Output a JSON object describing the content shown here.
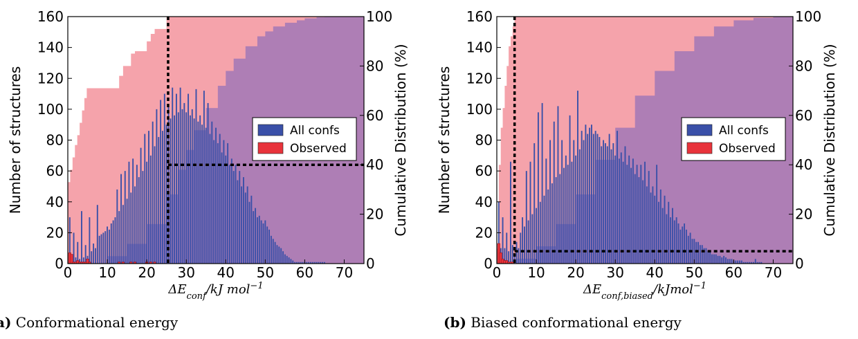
{
  "chart_data": [
    {
      "id": "a",
      "type": "bar",
      "caption_tag": "a)",
      "caption_text": "Conformational energy",
      "xlabel_main": "ΔE",
      "xlabel_sub": "conf",
      "xlabel_rest": "/kJ mol",
      "xlabel_sup": "−1",
      "ylabel_left": "Number of structures",
      "ylabel_right": "Cumulative Distribution (%)",
      "xlim": [
        0,
        75
      ],
      "ylim_left": [
        0,
        160
      ],
      "ylim_right": [
        0,
        100
      ],
      "xticks": [
        "0",
        "10",
        "20",
        "30",
        "40",
        "50",
        "60",
        "70"
      ],
      "yticks_left": [
        "0",
        "20",
        "40",
        "60",
        "80",
        "100",
        "120",
        "140",
        "160"
      ],
      "yticks_right": [
        "0",
        "20",
        "40",
        "60",
        "80",
        "100"
      ],
      "legend": [
        {
          "label": "All confs",
          "color": "#3a50a8"
        },
        {
          "label": "Observed",
          "color": "#e8333b"
        }
      ],
      "legend_position": "center-right",
      "colors": {
        "all": "#3a50a8",
        "observed": "#e8333b",
        "cum_all": "#ae7eb5",
        "cum_obs": "#f5a3ab"
      },
      "all_confs": {
        "x": [
          0.5,
          1,
          1.5,
          2,
          2.5,
          3,
          3.5,
          4,
          4.5,
          5,
          5.5,
          6,
          6.5,
          7,
          7.5,
          8,
          8.5,
          9,
          9.5,
          10,
          10.5,
          11,
          11.5,
          12,
          12.5,
          13,
          13.5,
          14,
          14.5,
          15,
          15.5,
          16,
          16.5,
          17,
          17.5,
          18,
          18.5,
          19,
          19.5,
          20,
          20.5,
          21,
          21.5,
          22,
          22.5,
          23,
          23.5,
          24,
          24.5,
          25,
          25.5,
          26,
          26.5,
          27,
          27.5,
          28,
          28.5,
          29,
          29.5,
          30,
          30.5,
          31,
          31.5,
          32,
          32.5,
          33,
          33.5,
          34,
          34.5,
          35,
          35.5,
          36,
          36.5,
          37,
          37.5,
          38,
          38.5,
          39,
          39.5,
          40,
          40.5,
          41,
          41.5,
          42,
          42.5,
          43,
          43.5,
          44,
          44.5,
          45,
          45.5,
          46,
          46.5,
          47,
          47.5,
          48,
          48.5,
          49,
          49.5,
          50,
          50.5,
          51,
          51.5,
          52,
          52.5,
          53,
          53.5,
          54,
          54.5,
          55,
          55.5,
          56,
          56.5,
          57,
          57.5,
          58,
          58.5,
          59,
          59.5,
          60,
          60.5,
          61,
          61.5,
          62,
          62.5,
          63,
          63.5,
          64,
          64.5,
          65
        ],
        "values": [
          30,
          5,
          20,
          4,
          14,
          3,
          34,
          4,
          12,
          5,
          30,
          8,
          13,
          10,
          38,
          18,
          19,
          20,
          21,
          24,
          22,
          26,
          28,
          30,
          48,
          34,
          58,
          38,
          60,
          42,
          66,
          46,
          68,
          50,
          64,
          56,
          75,
          60,
          84,
          66,
          86,
          70,
          92,
          76,
          100,
          82,
          106,
          86,
          110,
          90,
          102,
          94,
          114,
          96,
          110,
          98,
          114,
          100,
          104,
          98,
          110,
          96,
          100,
          94,
          113,
          92,
          96,
          90,
          112,
          88,
          104,
          84,
          92,
          80,
          88,
          78,
          84,
          72,
          80,
          70,
          78,
          64,
          68,
          60,
          64,
          54,
          60,
          50,
          56,
          46,
          50,
          40,
          44,
          34,
          36,
          30,
          31,
          28,
          26,
          28,
          24,
          22,
          18,
          16,
          14,
          12,
          11,
          10,
          8,
          6,
          5,
          4,
          3,
          2,
          1,
          1,
          1,
          1,
          1,
          1,
          1,
          1,
          1,
          1,
          1,
          1,
          1,
          1,
          1,
          1
        ]
      },
      "observed": {
        "x": [
          0.5,
          1,
          1.5,
          2,
          2.5,
          3,
          3.5,
          4,
          4.5,
          5,
          5.5,
          13,
          14,
          16,
          17,
          20,
          21,
          22
        ],
        "values": [
          7,
          6,
          1,
          1,
          2,
          1,
          1,
          1,
          1,
          3,
          1,
          1,
          1,
          1,
          1,
          1,
          1,
          1
        ]
      },
      "cumulative_all": {
        "x": [
          0,
          10,
          15,
          20,
          25,
          28,
          30,
          32,
          35,
          38,
          40,
          42,
          45,
          48,
          50,
          52,
          55,
          58,
          60,
          63,
          65,
          70,
          75
        ],
        "values": [
          0,
          3,
          8,
          16,
          28,
          38,
          46,
          54,
          63,
          72,
          78,
          83,
          88,
          92,
          94,
          96,
          97.5,
          98.5,
          99.3,
          99.8,
          100,
          100,
          100
        ]
      },
      "cumulative_observed": {
        "x": [
          0,
          0.6,
          1.2,
          1.8,
          2.4,
          3,
          3.6,
          4.2,
          4.8,
          5.4,
          13,
          14,
          16,
          17,
          20,
          21,
          22,
          25,
          75
        ],
        "values": [
          33,
          38,
          43,
          48,
          52,
          57,
          62,
          67,
          71,
          71,
          76,
          80,
          85,
          86,
          90,
          93,
          95,
          100,
          100
        ]
      },
      "threshold_x": 25.4,
      "threshold_cum": 40
    },
    {
      "id": "b",
      "type": "bar",
      "caption_tag": "(b)",
      "caption_text": "Biased conformational energy",
      "xlabel_main": "ΔE",
      "xlabel_sub": "conf,biased",
      "xlabel_rest": "/kJmol",
      "xlabel_sup": "−1",
      "ylabel_left": "Number of structures",
      "ylabel_right": "Cumulative Distribution (%)",
      "xlim": [
        0,
        75
      ],
      "ylim_left": [
        0,
        160
      ],
      "ylim_right": [
        0,
        100
      ],
      "xticks": [
        "0",
        "10",
        "20",
        "30",
        "40",
        "50",
        "60",
        "70"
      ],
      "yticks_left": [
        "0",
        "20",
        "40",
        "60",
        "80",
        "100",
        "120",
        "140",
        "160"
      ],
      "yticks_right": [
        "0",
        "20",
        "40",
        "60",
        "80",
        "100"
      ],
      "legend": [
        {
          "label": "All confs",
          "color": "#3a50a8"
        },
        {
          "label": "Observed",
          "color": "#e8333b"
        }
      ],
      "legend_position": "center-right",
      "colors": {
        "all": "#3a50a8",
        "observed": "#e8333b",
        "cum_all": "#ae7eb5",
        "cum_obs": "#f5a3ab"
      },
      "all_confs": {
        "x": [
          0.5,
          1,
          1.5,
          2,
          2.5,
          3,
          3.5,
          4,
          4.5,
          5,
          5.5,
          6,
          6.5,
          7,
          7.5,
          8,
          8.5,
          9,
          9.5,
          10,
          10.5,
          11,
          11.5,
          12,
          12.5,
          13,
          13.5,
          14,
          14.5,
          15,
          15.5,
          16,
          16.5,
          17,
          17.5,
          18,
          18.5,
          19,
          19.5,
          20,
          20.5,
          21,
          21.5,
          22,
          22.5,
          23,
          23.5,
          24,
          24.5,
          25,
          25.5,
          26,
          26.5,
          27,
          27.5,
          28,
          28.5,
          29,
          29.5,
          30,
          30.5,
          31,
          31.5,
          32,
          32.5,
          33,
          33.5,
          34,
          34.5,
          35,
          35.5,
          36,
          36.5,
          37,
          37.5,
          38,
          38.5,
          39,
          39.5,
          40,
          40.5,
          41,
          41.5,
          42,
          42.5,
          43,
          43.5,
          44,
          44.5,
          45,
          45.5,
          46,
          46.5,
          47,
          47.5,
          48,
          48.5,
          49,
          49.5,
          50,
          50.5,
          51,
          51.5,
          52,
          52.5,
          53,
          53.5,
          54,
          54.5,
          55,
          55.5,
          56,
          56.5,
          57,
          57.5,
          58,
          58.5,
          59,
          59.5,
          60,
          60.5,
          61,
          61.5,
          62,
          62.5,
          63,
          63.5,
          64,
          64.5,
          65,
          65.5,
          66,
          66.5,
          67
        ],
        "values": [
          40,
          10,
          30,
          10,
          20,
          8,
          66,
          12,
          5,
          14,
          10,
          20,
          30,
          24,
          60,
          28,
          66,
          32,
          78,
          36,
          98,
          40,
          104,
          44,
          68,
          48,
          80,
          52,
          92,
          56,
          102,
          58,
          80,
          62,
          70,
          64,
          96,
          66,
          80,
          70,
          112,
          74,
          86,
          80,
          90,
          84,
          88,
          90,
          84,
          86,
          84,
          82,
          76,
          80,
          78,
          76,
          84,
          74,
          78,
          70,
          86,
          68,
          72,
          66,
          76,
          64,
          70,
          62,
          68,
          58,
          64,
          56,
          64,
          54,
          66,
          50,
          60,
          46,
          50,
          44,
          64,
          40,
          48,
          36,
          44,
          32,
          40,
          30,
          36,
          28,
          30,
          26,
          22,
          24,
          26,
          22,
          18,
          20,
          16,
          16,
          14,
          14,
          12,
          12,
          10,
          10,
          8,
          8,
          6,
          6,
          6,
          5,
          5,
          4,
          5,
          4,
          3,
          3,
          3,
          2,
          2,
          2,
          2,
          2,
          1,
          1,
          1,
          1,
          1,
          1,
          3,
          1,
          1,
          1
        ]
      },
      "observed": {
        "x": [
          0.5,
          1,
          1.5,
          2,
          2.5,
          3,
          3.5,
          4
        ],
        "values": [
          13,
          7,
          3,
          2,
          2,
          1,
          1,
          1
        ]
      },
      "cumulative_all": {
        "x": [
          0,
          5,
          10,
          15,
          20,
          25,
          30,
          35,
          40,
          45,
          50,
          55,
          60,
          65,
          70,
          75
        ],
        "values": [
          0,
          2,
          7,
          16,
          28,
          42,
          55,
          68,
          78,
          86,
          92,
          96,
          98.5,
          99.5,
          100,
          100
        ]
      },
      "cumulative_observed": {
        "x": [
          0,
          0.5,
          1,
          1.5,
          2,
          2.5,
          3,
          3.5,
          4,
          4.5,
          75
        ],
        "values": [
          6,
          40,
          55,
          63,
          72,
          80,
          88,
          92,
          96,
          100,
          100
        ]
      },
      "threshold_x": 4.5,
      "threshold_cum": 5
    }
  ]
}
